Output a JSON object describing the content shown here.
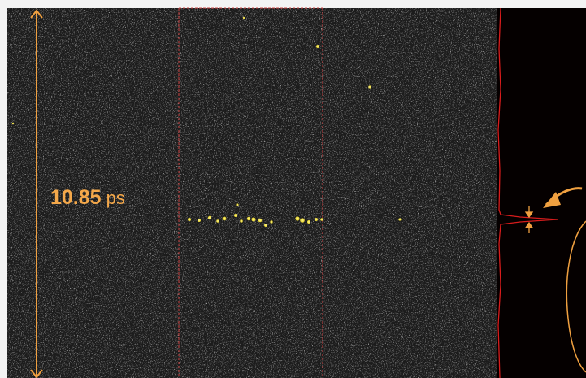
{
  "annotation": {
    "value": "10.85",
    "unit": "ps"
  }
}
